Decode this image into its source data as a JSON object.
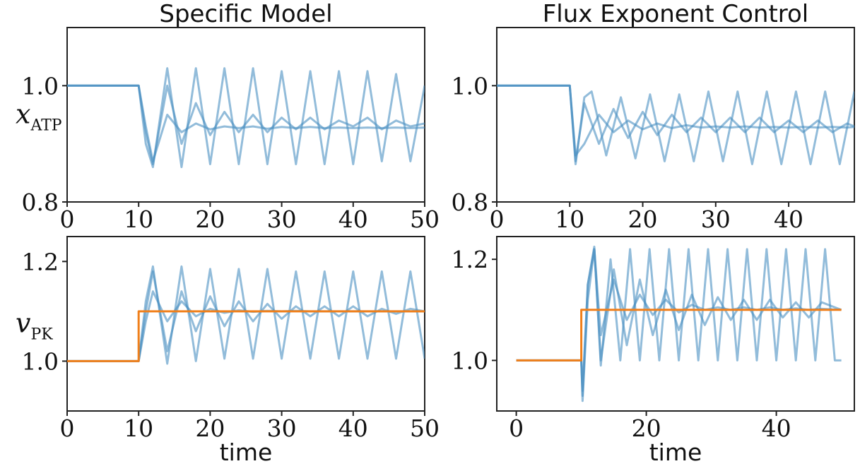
{
  "colors": {
    "blue": "#4a90c2",
    "orange": "#f07f1a",
    "axis": "#222222"
  },
  "chart_data": [
    {
      "type": "line",
      "title": "Specific Model",
      "ylabel_main": "x",
      "ylabel_sub": "ATP",
      "xlabel": "",
      "xlim": [
        0,
        50
      ],
      "ylim": [
        0.8,
        1.1
      ],
      "xticks": [
        0,
        10,
        20,
        30,
        40,
        50
      ],
      "yticks": [
        0.8,
        1.0
      ],
      "xtick_labels": [
        "0",
        "10",
        "20",
        "30",
        "40",
        "50"
      ],
      "ytick_labels": [
        "0.8",
        "1.0"
      ],
      "series": [
        {
          "color": "blue",
          "x": [
            0,
            10,
            11,
            12,
            14,
            16,
            18,
            20,
            22,
            24,
            26,
            28,
            30,
            32,
            34,
            36,
            38,
            40,
            42,
            44,
            46,
            48,
            50
          ],
          "y": [
            1.0,
            1.0,
            0.93,
            0.87,
            0.95,
            0.92,
            0.935,
            0.925,
            0.93,
            0.927,
            0.93,
            0.926,
            0.929,
            0.927,
            0.929,
            0.927,
            0.928,
            0.927,
            0.928,
            0.927,
            0.928,
            0.927,
            0.928
          ]
        },
        {
          "color": "blue",
          "x": [
            0,
            10,
            11,
            12,
            14,
            16,
            18,
            20,
            22,
            24,
            26,
            28,
            30,
            32,
            34,
            36,
            38,
            40,
            42,
            44,
            46,
            48,
            50
          ],
          "y": [
            1.0,
            1.0,
            0.92,
            0.865,
            1.0,
            0.9,
            0.97,
            0.915,
            0.955,
            0.92,
            0.95,
            0.92,
            0.945,
            0.925,
            0.945,
            0.925,
            0.94,
            0.93,
            0.945,
            0.925,
            0.94,
            0.93,
            0.935
          ]
        },
        {
          "color": "blue",
          "x": [
            0,
            10,
            11,
            12,
            14,
            16,
            18,
            20,
            22,
            24,
            26,
            28,
            30,
            32,
            34,
            36,
            38,
            40,
            42,
            44,
            46,
            48,
            50
          ],
          "y": [
            1.0,
            1.0,
            0.9,
            0.86,
            1.03,
            0.86,
            1.03,
            0.865,
            1.03,
            0.865,
            1.03,
            0.865,
            1.025,
            0.865,
            1.025,
            0.865,
            1.025,
            0.865,
            1.025,
            0.87,
            1.02,
            0.87,
            1.0
          ]
        }
      ]
    },
    {
      "type": "line",
      "title": "Flux Exponent Control",
      "ylabel_main": "",
      "ylabel_sub": "",
      "xlabel": "",
      "xlim": [
        0,
        49
      ],
      "ylim": [
        0.8,
        1.1
      ],
      "xticks": [
        0,
        10,
        20,
        30,
        40
      ],
      "yticks": [
        0.8,
        1.0
      ],
      "xtick_labels": [
        "0",
        "10",
        "20",
        "30",
        "40"
      ],
      "ytick_labels": [
        "0.8",
        "1.0"
      ],
      "series": [
        {
          "color": "blue",
          "x": [
            0,
            10,
            10.8,
            12,
            14,
            16,
            18,
            20,
            22,
            24,
            26,
            28,
            30,
            32,
            34,
            36,
            38,
            40,
            42,
            44,
            46,
            48,
            49
          ],
          "y": [
            1.0,
            1.0,
            0.88,
            0.9,
            0.95,
            0.92,
            0.94,
            0.925,
            0.935,
            0.927,
            0.932,
            0.928,
            0.93,
            0.928,
            0.93,
            0.928,
            0.929,
            0.928,
            0.929,
            0.928,
            0.929,
            0.928,
            0.929
          ]
        },
        {
          "color": "blue",
          "x": [
            0,
            10,
            10.8,
            12,
            14,
            16,
            18,
            20,
            22,
            24,
            26,
            28,
            30,
            32,
            34,
            36,
            38,
            40,
            42,
            44,
            46,
            48,
            49
          ],
          "y": [
            1.0,
            1.0,
            0.87,
            0.97,
            0.9,
            0.96,
            0.91,
            0.955,
            0.915,
            0.95,
            0.92,
            0.945,
            0.92,
            0.945,
            0.92,
            0.945,
            0.92,
            0.94,
            0.92,
            0.94,
            0.92,
            0.935,
            0.93
          ]
        },
        {
          "color": "blue",
          "x": [
            0,
            10,
            10.8,
            12,
            13,
            15,
            17,
            19,
            21,
            23,
            25,
            27,
            29,
            31,
            33,
            35,
            37,
            39,
            41,
            43,
            45,
            47,
            49
          ],
          "y": [
            1.0,
            1.0,
            0.865,
            0.98,
            0.99,
            0.88,
            0.98,
            0.875,
            0.985,
            0.87,
            0.985,
            0.87,
            0.99,
            0.87,
            0.99,
            0.865,
            0.99,
            0.865,
            0.99,
            0.865,
            0.99,
            0.865,
            0.99
          ]
        }
      ]
    },
    {
      "type": "line",
      "title": "",
      "ylabel_main": "v",
      "ylabel_sub": "PK",
      "xlabel": "time",
      "xlim": [
        0,
        50
      ],
      "ylim": [
        0.9,
        1.25
      ],
      "xticks": [
        0,
        10,
        20,
        30,
        40,
        50
      ],
      "yticks": [
        1.0,
        1.2
      ],
      "xtick_labels": [
        "0",
        "10",
        "20",
        "30",
        "40",
        "50"
      ],
      "ytick_labels": [
        "1.0",
        "1.2"
      ],
      "series": [
        {
          "color": "blue",
          "x": [
            0,
            10,
            11,
            12,
            14,
            16,
            18,
            20,
            22,
            24,
            26,
            28,
            30,
            32,
            34,
            36,
            38,
            40,
            42,
            44,
            46,
            48,
            50
          ],
          "y": [
            1.0,
            1.0,
            1.08,
            1.14,
            1.08,
            1.12,
            1.09,
            1.105,
            1.097,
            1.102,
            1.099,
            1.101,
            1.1,
            1.101,
            1.1,
            1.1,
            1.1,
            1.1,
            1.1,
            1.1,
            1.1,
            1.1,
            1.1
          ]
        },
        {
          "color": "blue",
          "x": [
            0,
            10,
            11,
            12,
            14,
            16,
            18,
            20,
            22,
            24,
            26,
            28,
            30,
            32,
            34,
            36,
            38,
            40,
            42,
            44,
            46,
            48,
            50
          ],
          "y": [
            1.0,
            1.0,
            1.1,
            1.18,
            1.02,
            1.14,
            1.06,
            1.13,
            1.07,
            1.12,
            1.08,
            1.115,
            1.085,
            1.11,
            1.09,
            1.11,
            1.09,
            1.11,
            1.09,
            1.105,
            1.095,
            1.105,
            1.1
          ]
        },
        {
          "color": "blue",
          "x": [
            0,
            10,
            11,
            12,
            14,
            16,
            18,
            20,
            22,
            24,
            26,
            28,
            30,
            32,
            34,
            36,
            38,
            40,
            42,
            44,
            46,
            48,
            50
          ],
          "y": [
            1.0,
            1.0,
            1.12,
            1.19,
            0.995,
            1.19,
            1.0,
            1.185,
            1.005,
            1.185,
            1.005,
            1.185,
            1.005,
            1.18,
            1.005,
            1.18,
            1.005,
            1.18,
            1.005,
            1.18,
            1.005,
            1.18,
            1.005
          ]
        },
        {
          "color": "orange",
          "x": [
            0,
            10,
            10,
            50
          ],
          "y": [
            1.0,
            1.0,
            1.1,
            1.1
          ]
        }
      ]
    },
    {
      "type": "line",
      "title": "",
      "ylabel_main": "",
      "ylabel_sub": "",
      "xlabel": "time",
      "xlim": [
        -3,
        52
      ],
      "ylim": [
        0.9,
        1.245
      ],
      "xticks": [
        0,
        20,
        40
      ],
      "yticks": [
        1.0,
        1.2
      ],
      "xtick_labels": [
        "0",
        "20",
        "40"
      ],
      "ytick_labels": [
        "1.0",
        "1.2"
      ],
      "series": [
        {
          "color": "blue",
          "x": [
            0,
            10,
            10.2,
            11,
            12,
            13,
            15,
            17,
            19,
            21,
            23,
            25,
            27,
            29,
            31,
            33,
            35,
            37,
            39,
            41,
            43,
            45,
            47,
            50
          ],
          "y": [
            1.0,
            1.0,
            0.92,
            1.12,
            1.22,
            1.05,
            1.16,
            1.08,
            1.13,
            1.09,
            1.12,
            1.095,
            1.11,
            1.1,
            1.105,
            1.1,
            1.105,
            1.1,
            1.105,
            1.1,
            1.103,
            1.1,
            1.102,
            1.1
          ]
        },
        {
          "color": "blue",
          "x": [
            0,
            10,
            10.2,
            11,
            12,
            13,
            15,
            17,
            19,
            21,
            23,
            25,
            27,
            29,
            31,
            33,
            35,
            37,
            39,
            41,
            43,
            45,
            47,
            50
          ],
          "y": [
            1.0,
            1.0,
            0.93,
            1.15,
            1.22,
            1.0,
            1.18,
            1.03,
            1.16,
            1.05,
            1.14,
            1.06,
            1.13,
            1.07,
            1.125,
            1.08,
            1.12,
            1.08,
            1.12,
            1.085,
            1.115,
            1.085,
            1.115,
            1.1
          ]
        },
        {
          "color": "blue",
          "x": [
            0,
            10,
            10.2,
            11,
            12,
            13,
            14.5,
            16,
            17.5,
            19,
            20.5,
            22,
            23.5,
            25,
            26.5,
            28,
            29.5,
            31,
            32.5,
            34,
            35.5,
            37,
            38.5,
            40,
            41.5,
            43,
            44.5,
            46,
            47.5,
            49,
            50
          ],
          "y": [
            1.0,
            1.0,
            0.94,
            1.15,
            1.225,
            0.99,
            1.2,
            1.0,
            1.22,
            1.0,
            1.22,
            1.0,
            1.22,
            1.0,
            1.22,
            1.0,
            1.22,
            1.0,
            1.22,
            1.0,
            1.22,
            1.0,
            1.22,
            1.0,
            1.22,
            1.0,
            1.22,
            1.0,
            1.22,
            1.0,
            1.0
          ]
        },
        {
          "color": "orange",
          "x": [
            0,
            10,
            10,
            50
          ],
          "y": [
            1.0,
            1.0,
            1.1,
            1.1
          ]
        }
      ]
    }
  ]
}
